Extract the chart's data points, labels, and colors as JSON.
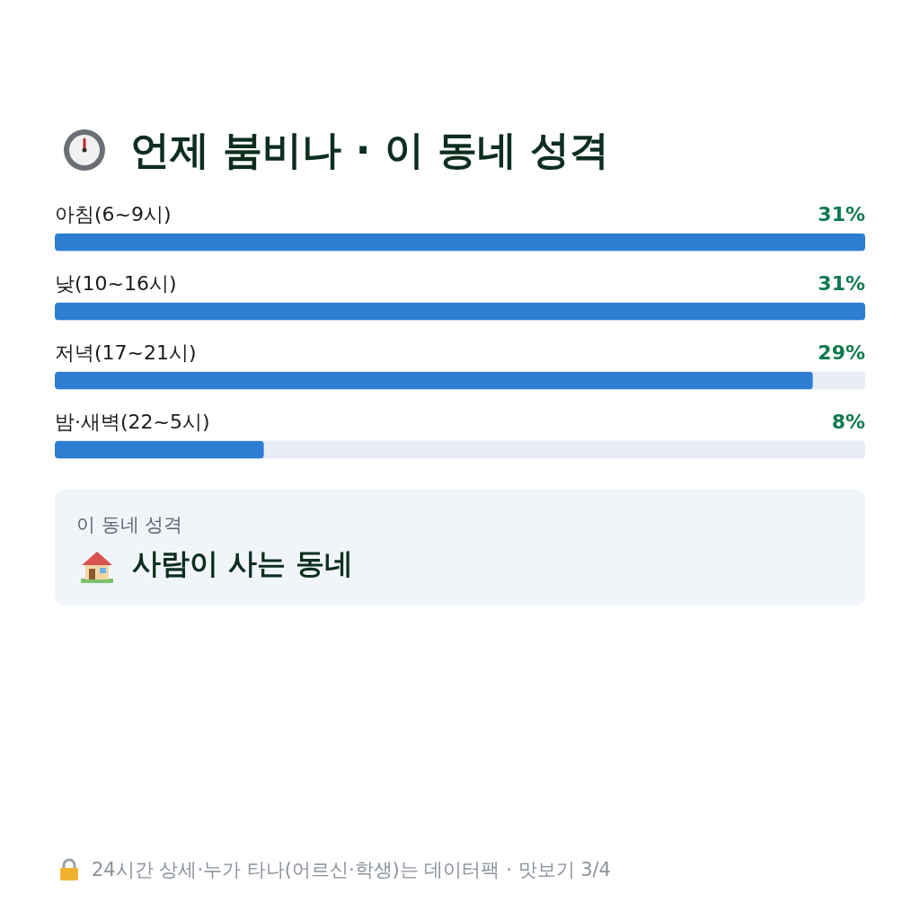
{
  "chart_data": {
    "type": "bar",
    "orientation": "horizontal",
    "title": "언제 붐비나 · 이 동네 성격",
    "categories": [
      "아침(6~9시)",
      "낮(10~16시)",
      "저녁(17~21시)",
      "밤·새벽(22~5시)"
    ],
    "values": [
      31,
      31,
      29,
      8
    ],
    "color": "#2d7dd2",
    "value_labels": [
      "31%",
      "31%",
      "29%",
      "8%"
    ],
    "annotations": [
      "이 동네 성격",
      "사람이 사는 동네",
      "24시간 상세·누가 타나(어르신·학생)는 데이터팩 · 맛보기 3/4"
    ]
  }
}
